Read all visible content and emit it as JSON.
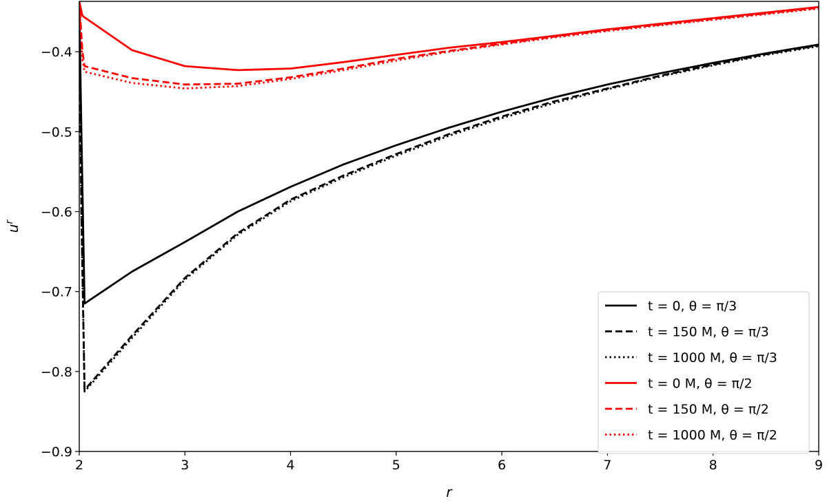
{
  "chart_data": {
    "type": "line",
    "title": "",
    "xlabel": "r",
    "ylabel": "u^r",
    "xlim": [
      2,
      9
    ],
    "ylim": [
      -0.9,
      -0.337
    ],
    "xticks": [
      2,
      3,
      4,
      5,
      6,
      7,
      8,
      9
    ],
    "xtick_labels": [
      "2",
      "3",
      "4",
      "5",
      "6",
      "7",
      "8",
      "9"
    ],
    "yticks": [
      -0.9,
      -0.8,
      -0.7,
      -0.6,
      -0.5,
      -0.4
    ],
    "ytick_labels": [
      "−0.9",
      "−0.8",
      "−0.7",
      "−0.6",
      "−0.5",
      "−0.4"
    ],
    "grid": false,
    "legend_position": "lower-right",
    "series": [
      {
        "name": "t = 0,  θ = π/3",
        "color": "#000000",
        "style": "solid",
        "x": [
          2.0,
          2.02,
          2.05,
          2.5,
          3.0,
          3.5,
          4.0,
          4.5,
          5.0,
          5.5,
          6.0,
          6.5,
          7.0,
          7.5,
          8.0,
          8.5,
          9.0
        ],
        "y": [
          -0.337,
          -0.5,
          -0.715,
          -0.675,
          -0.638,
          -0.6,
          -0.569,
          -0.541,
          -0.517,
          -0.495,
          -0.475,
          -0.457,
          -0.441,
          -0.427,
          -0.414,
          -0.402,
          -0.391
        ]
      },
      {
        "name": "t = 150 M, θ = π/3",
        "color": "#000000",
        "style": "dashed",
        "x": [
          2.0,
          2.02,
          2.05,
          2.5,
          3.0,
          3.5,
          4.0,
          4.5,
          5.0,
          5.5,
          6.0,
          6.5,
          7.0,
          7.5,
          8.0,
          8.5,
          9.0
        ],
        "y": [
          -0.337,
          -0.6,
          -0.823,
          -0.755,
          -0.683,
          -0.627,
          -0.585,
          -0.555,
          -0.528,
          -0.503,
          -0.481,
          -0.462,
          -0.446,
          -0.43,
          -0.416,
          -0.403,
          -0.392
        ]
      },
      {
        "name": "t = 1000 M, θ = π/3",
        "color": "#000000",
        "style": "dotted",
        "x": [
          2.0,
          2.02,
          2.05,
          2.5,
          3.0,
          3.5,
          4.0,
          4.5,
          5.0,
          5.5,
          6.0,
          6.5,
          7.0,
          7.5,
          8.0,
          8.5,
          9.0
        ],
        "y": [
          -0.337,
          -0.6,
          -0.825,
          -0.758,
          -0.685,
          -0.629,
          -0.587,
          -0.557,
          -0.53,
          -0.505,
          -0.483,
          -0.464,
          -0.447,
          -0.431,
          -0.417,
          -0.404,
          -0.393
        ]
      },
      {
        "name": "t = 0 M, θ = π/2",
        "color": "#ff0000",
        "style": "solid",
        "x": [
          2.0,
          2.03,
          2.05,
          2.5,
          3.0,
          3.5,
          4.0,
          4.5,
          5.0,
          5.5,
          6.0,
          6.5,
          7.0,
          7.5,
          8.0,
          8.5,
          9.0
        ],
        "y": [
          -0.337,
          -0.355,
          -0.357,
          -0.398,
          -0.418,
          -0.423,
          -0.421,
          -0.413,
          -0.404,
          -0.395,
          -0.388,
          -0.38,
          -0.372,
          -0.365,
          -0.358,
          -0.351,
          -0.344
        ]
      },
      {
        "name": "t = 150 M, θ = π/2",
        "color": "#ff0000",
        "style": "dashed",
        "x": [
          2.0,
          2.03,
          2.05,
          2.5,
          3.0,
          3.5,
          4.0,
          4.5,
          5.0,
          5.5,
          6.0,
          6.5,
          7.0,
          7.5,
          8.0,
          8.5,
          9.0
        ],
        "y": [
          -0.337,
          -0.4,
          -0.418,
          -0.433,
          -0.441,
          -0.44,
          -0.432,
          -0.421,
          -0.409,
          -0.399,
          -0.39,
          -0.381,
          -0.373,
          -0.366,
          -0.359,
          -0.352,
          -0.345
        ]
      },
      {
        "name": "t = 1000 M, θ = π/2",
        "color": "#ff0000",
        "style": "dotted",
        "x": [
          2.0,
          2.03,
          2.05,
          2.5,
          3.0,
          3.5,
          4.0,
          4.5,
          5.0,
          5.5,
          6.0,
          6.5,
          7.0,
          7.5,
          8.0,
          8.5,
          9.0
        ],
        "y": [
          -0.337,
          -0.41,
          -0.425,
          -0.439,
          -0.446,
          -0.443,
          -0.434,
          -0.423,
          -0.411,
          -0.4,
          -0.391,
          -0.382,
          -0.374,
          -0.367,
          -0.36,
          -0.353,
          -0.346
        ]
      }
    ]
  }
}
